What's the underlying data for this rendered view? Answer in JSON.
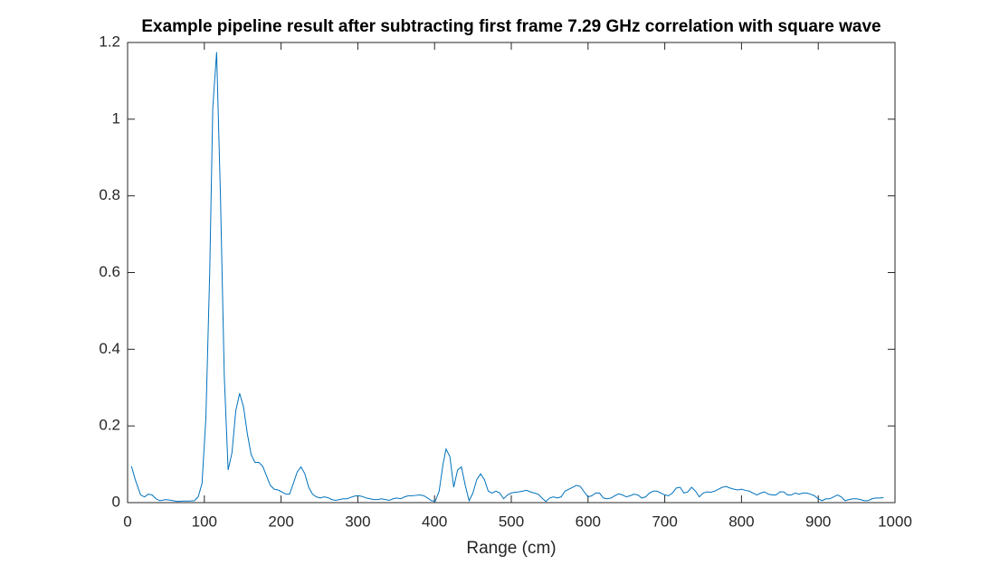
{
  "chart_data": {
    "type": "line",
    "title": "Example pipeline result after subtracting first frame 7.29 GHz correlation with square wave",
    "x_label": "Range (cm)",
    "color": "#0072bd",
    "xlim": [
      0,
      1000
    ],
    "xticks": [
      0,
      100,
      200,
      300,
      400,
      500,
      600,
      700,
      800,
      900,
      1000
    ],
    "ylim": [
      0,
      1.2
    ],
    "yticks": [
      0,
      0.2,
      0.4,
      0.6,
      0.8,
      1,
      1.2
    ],
    "x": [
      5,
      10,
      17,
      22,
      27,
      32,
      37,
      42,
      50,
      57,
      65,
      72,
      80,
      87,
      92,
      97,
      102,
      107,
      111,
      116,
      121,
      126,
      131,
      136,
      141,
      146,
      151,
      156,
      161,
      166,
      171,
      176,
      181,
      186,
      191,
      196,
      201,
      206,
      211,
      216,
      221,
      226,
      231,
      236,
      241,
      246,
      251,
      256,
      261,
      266,
      271,
      276,
      281,
      286,
      291,
      296,
      301,
      306,
      311,
      316,
      321,
      326,
      331,
      336,
      341,
      346,
      351,
      356,
      361,
      366,
      371,
      376,
      381,
      386,
      391,
      396,
      401,
      406,
      411,
      415,
      420,
      425,
      430,
      435,
      440,
      445,
      450,
      455,
      460,
      465,
      470,
      475,
      480,
      485,
      490,
      495,
      500,
      505,
      510,
      515,
      520,
      525,
      530,
      535,
      540,
      545,
      550,
      555,
      560,
      565,
      570,
      575,
      580,
      585,
      590,
      595,
      600,
      605,
      610,
      615,
      620,
      625,
      630,
      635,
      640,
      645,
      650,
      655,
      660,
      665,
      670,
      675,
      680,
      685,
      690,
      695,
      700,
      705,
      710,
      715,
      720,
      725,
      730,
      735,
      740,
      745,
      750,
      755,
      760,
      765,
      770,
      775,
      780,
      785,
      790,
      795,
      800,
      805,
      810,
      815,
      820,
      825,
      830,
      835,
      840,
      845,
      850,
      855,
      860,
      865,
      870,
      875,
      880,
      885,
      890,
      895,
      900,
      905,
      910,
      915,
      920,
      925,
      930,
      935,
      940,
      945,
      950,
      955,
      960,
      965,
      970,
      975,
      980,
      985
    ],
    "values": [
      0.095,
      0.06,
      0.02,
      0.015,
      0.022,
      0.02,
      0.01,
      0.005,
      0.008,
      0.006,
      0.003,
      0.004,
      0.004,
      0.005,
      0.015,
      0.05,
      0.22,
      0.6,
      1.03,
      1.175,
      0.8,
      0.33,
      0.085,
      0.13,
      0.24,
      0.285,
      0.25,
      0.18,
      0.125,
      0.105,
      0.105,
      0.095,
      0.07,
      0.045,
      0.035,
      0.033,
      0.028,
      0.022,
      0.022,
      0.05,
      0.08,
      0.093,
      0.075,
      0.04,
      0.022,
      0.015,
      0.012,
      0.015,
      0.013,
      0.008,
      0.006,
      0.008,
      0.01,
      0.01,
      0.014,
      0.017,
      0.018,
      0.016,
      0.012,
      0.01,
      0.008,
      0.008,
      0.01,
      0.008,
      0.006,
      0.01,
      0.012,
      0.01,
      0.015,
      0.018,
      0.018,
      0.019,
      0.02,
      0.018,
      0.012,
      0.005,
      0.004,
      0.03,
      0.1,
      0.14,
      0.12,
      0.04,
      0.085,
      0.093,
      0.045,
      0.005,
      0.025,
      0.06,
      0.075,
      0.06,
      0.03,
      0.025,
      0.03,
      0.025,
      0.01,
      0.02,
      0.025,
      0.027,
      0.028,
      0.03,
      0.032,
      0.028,
      0.025,
      0.022,
      0.012,
      0.003,
      0.012,
      0.015,
      0.012,
      0.015,
      0.03,
      0.035,
      0.04,
      0.045,
      0.042,
      0.028,
      0.015,
      0.018,
      0.025,
      0.025,
      0.012,
      0.01,
      0.012,
      0.018,
      0.023,
      0.02,
      0.015,
      0.018,
      0.022,
      0.02,
      0.012,
      0.015,
      0.025,
      0.03,
      0.03,
      0.025,
      0.02,
      0.018,
      0.025,
      0.038,
      0.04,
      0.025,
      0.028,
      0.04,
      0.03,
      0.015,
      0.025,
      0.028,
      0.027,
      0.03,
      0.035,
      0.04,
      0.042,
      0.038,
      0.035,
      0.033,
      0.035,
      0.032,
      0.03,
      0.025,
      0.02,
      0.025,
      0.028,
      0.022,
      0.02,
      0.02,
      0.028,
      0.028,
      0.02,
      0.02,
      0.025,
      0.022,
      0.025,
      0.025,
      0.022,
      0.018,
      0.01,
      0.005,
      0.01,
      0.01,
      0.015,
      0.02,
      0.015,
      0.005,
      0.008,
      0.01,
      0.01,
      0.008,
      0.005,
      0.005,
      0.01,
      0.012,
      0.012,
      0.013
    ]
  }
}
